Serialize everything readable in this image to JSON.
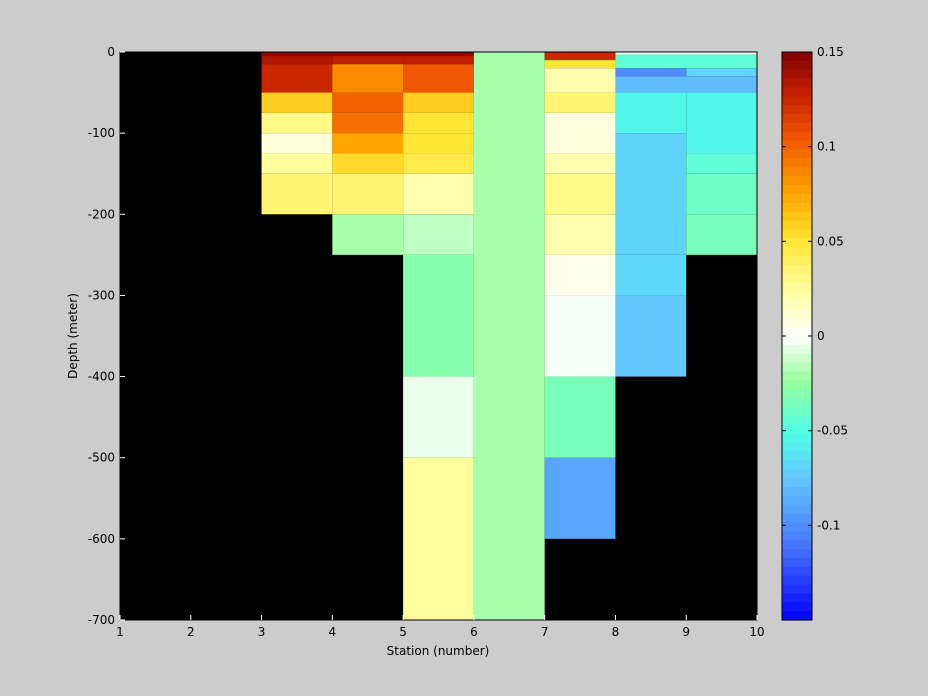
{
  "chart_data": {
    "type": "heatmap",
    "title": "",
    "xlabel": "Station (number)",
    "ylabel": "Depth (meter)",
    "xlim": [
      1,
      10
    ],
    "ylim": [
      -700,
      0
    ],
    "x_ticks": [
      1,
      2,
      3,
      4,
      5,
      6,
      7,
      8,
      9,
      10
    ],
    "y_ticks": [
      0,
      -100,
      -200,
      -300,
      -400,
      -500,
      -600,
      -700
    ],
    "colorbar": {
      "range": [
        -0.15,
        0.15
      ],
      "ticks": [
        0.15,
        0.1,
        0.05,
        0,
        -0.05,
        -0.1
      ],
      "tick_labels": [
        "0.15",
        "0.1",
        "0.05",
        "0",
        "-0.05",
        "-0.1"
      ],
      "colormap": "jet-white-center"
    },
    "background_color": "#000000",
    "cells": [
      {
        "x0": 3,
        "x1": 5,
        "y_top": 0,
        "y_bottom": -5,
        "value": 0.145
      },
      {
        "x0": 5,
        "x1": 6,
        "y_top": 0,
        "y_bottom": -5,
        "value": 0.145
      },
      {
        "x0": 3,
        "x1": 4,
        "y_top": -5,
        "y_bottom": -15,
        "value": 0.135
      },
      {
        "x0": 4,
        "x1": 5,
        "y_top": -5,
        "y_bottom": -15,
        "value": 0.13
      },
      {
        "x0": 5,
        "x1": 6,
        "y_top": -5,
        "y_bottom": -15,
        "value": 0.13
      },
      {
        "x0": 3,
        "x1": 4,
        "y_top": -15,
        "y_bottom": -50,
        "value": 0.125
      },
      {
        "x0": 4,
        "x1": 5,
        "y_top": -15,
        "y_bottom": -50,
        "value": 0.085
      },
      {
        "x0": 5,
        "x1": 6,
        "y_top": -15,
        "y_bottom": -50,
        "value": 0.105
      },
      {
        "x0": 3,
        "x1": 4,
        "y_top": -50,
        "y_bottom": -75,
        "value": 0.06
      },
      {
        "x0": 4,
        "x1": 5,
        "y_top": -50,
        "y_bottom": -75,
        "value": 0.1
      },
      {
        "x0": 5,
        "x1": 6,
        "y_top": -50,
        "y_bottom": -75,
        "value": 0.06
      },
      {
        "x0": 3,
        "x1": 4,
        "y_top": -75,
        "y_bottom": -100,
        "value": 0.03
      },
      {
        "x0": 4,
        "x1": 5,
        "y_top": -75,
        "y_bottom": -100,
        "value": 0.095
      },
      {
        "x0": 5,
        "x1": 6,
        "y_top": -75,
        "y_bottom": -100,
        "value": 0.05
      },
      {
        "x0": 3,
        "x1": 4,
        "y_top": -100,
        "y_bottom": -125,
        "value": 0.01
      },
      {
        "x0": 4,
        "x1": 5,
        "y_top": -100,
        "y_bottom": -125,
        "value": 0.075
      },
      {
        "x0": 5,
        "x1": 6,
        "y_top": -100,
        "y_bottom": -125,
        "value": 0.05
      },
      {
        "x0": 3,
        "x1": 4,
        "y_top": -125,
        "y_bottom": -150,
        "value": 0.025
      },
      {
        "x0": 4,
        "x1": 5,
        "y_top": -125,
        "y_bottom": -150,
        "value": 0.055
      },
      {
        "x0": 5,
        "x1": 6,
        "y_top": -125,
        "y_bottom": -150,
        "value": 0.045
      },
      {
        "x0": 3,
        "x1": 4,
        "y_top": -150,
        "y_bottom": -200,
        "value": 0.035
      },
      {
        "x0": 4,
        "x1": 5,
        "y_top": -150,
        "y_bottom": -200,
        "value": 0.035
      },
      {
        "x0": 5,
        "x1": 6,
        "y_top": -150,
        "y_bottom": -200,
        "value": 0.02
      },
      {
        "x0": 4,
        "x1": 5,
        "y_top": -200,
        "y_bottom": -250,
        "value": -0.02
      },
      {
        "x0": 5,
        "x1": 6,
        "y_top": -200,
        "y_bottom": -250,
        "value": -0.015
      },
      {
        "x0": 5,
        "x1": 6,
        "y_top": -250,
        "y_bottom": -400,
        "value": -0.03
      },
      {
        "x0": 5,
        "x1": 6,
        "y_top": -400,
        "y_bottom": -500,
        "value": -0.005
      },
      {
        "x0": 5,
        "x1": 6,
        "y_top": -500,
        "y_bottom": -700,
        "value": 0.025
      },
      {
        "x0": 6,
        "x1": 7,
        "y_top": 0,
        "y_bottom": -700,
        "value": -0.02
      },
      {
        "x0": 7,
        "x1": 8,
        "y_top": 0,
        "y_bottom": -10,
        "value": 0.125
      },
      {
        "x0": 7,
        "x1": 8,
        "y_top": -10,
        "y_bottom": -20,
        "value": 0.05
      },
      {
        "x0": 7,
        "x1": 8,
        "y_top": -20,
        "y_bottom": -50,
        "value": 0.02
      },
      {
        "x0": 7,
        "x1": 8,
        "y_top": -50,
        "y_bottom": -75,
        "value": 0.035
      },
      {
        "x0": 7,
        "x1": 8,
        "y_top": -75,
        "y_bottom": -125,
        "value": 0.008
      },
      {
        "x0": 7,
        "x1": 8,
        "y_top": -125,
        "y_bottom": -150,
        "value": 0.02
      },
      {
        "x0": 7,
        "x1": 8,
        "y_top": -150,
        "y_bottom": -200,
        "value": 0.03
      },
      {
        "x0": 7,
        "x1": 8,
        "y_top": -200,
        "y_bottom": -250,
        "value": 0.02
      },
      {
        "x0": 7,
        "x1": 8,
        "y_top": -250,
        "y_bottom": -300,
        "value": 0.005
      },
      {
        "x0": 7,
        "x1": 8,
        "y_top": -300,
        "y_bottom": -400,
        "value": -0.002
      },
      {
        "x0": 7,
        "x1": 8,
        "y_top": -400,
        "y_bottom": -500,
        "value": -0.035
      },
      {
        "x0": 7,
        "x1": 8,
        "y_top": -500,
        "y_bottom": -600,
        "value": -0.09
      },
      {
        "x0": 8,
        "x1": 10,
        "y_top": 0,
        "y_bottom": -3,
        "value": 0.0
      },
      {
        "x0": 8,
        "x1": 10,
        "y_top": -3,
        "y_bottom": -20,
        "value": -0.045
      },
      {
        "x0": 8,
        "x1": 9,
        "y_top": -20,
        "y_bottom": -30,
        "value": -0.1
      },
      {
        "x0": 9,
        "x1": 10,
        "y_top": -20,
        "y_bottom": -30,
        "value": -0.07
      },
      {
        "x0": 8,
        "x1": 10,
        "y_top": -30,
        "y_bottom": -50,
        "value": -0.08
      },
      {
        "x0": 8,
        "x1": 9,
        "y_top": -50,
        "y_bottom": -100,
        "value": -0.055
      },
      {
        "x0": 8,
        "x1": 9,
        "y_top": -100,
        "y_bottom": -250,
        "value": -0.07
      },
      {
        "x0": 8,
        "x1": 9,
        "y_top": -250,
        "y_bottom": -300,
        "value": -0.068
      },
      {
        "x0": 8,
        "x1": 9,
        "y_top": -300,
        "y_bottom": -400,
        "value": -0.075
      },
      {
        "x0": 9,
        "x1": 10,
        "y_top": -50,
        "y_bottom": -125,
        "value": -0.055
      },
      {
        "x0": 9,
        "x1": 10,
        "y_top": -125,
        "y_bottom": -150,
        "value": -0.045
      },
      {
        "x0": 9,
        "x1": 10,
        "y_top": -150,
        "y_bottom": -200,
        "value": -0.04
      },
      {
        "x0": 9,
        "x1": 10,
        "y_top": -200,
        "y_bottom": -250,
        "value": -0.035
      }
    ]
  }
}
